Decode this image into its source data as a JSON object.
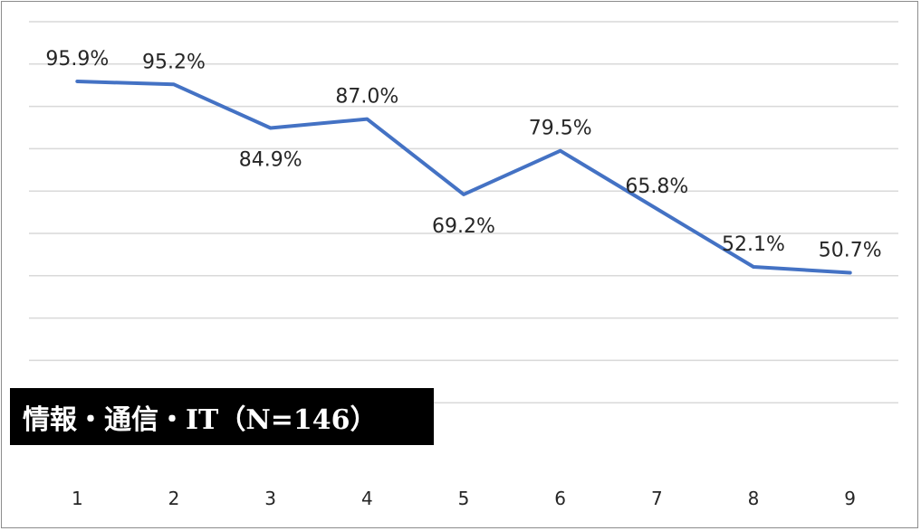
{
  "chart_data": {
    "type": "line",
    "title": "",
    "xlabel": "",
    "ylabel": "",
    "categories": [
      "1",
      "2",
      "3",
      "4",
      "5",
      "6",
      "7",
      "8",
      "9"
    ],
    "series": [
      {
        "values": [
          95.9,
          95.2,
          84.9,
          87.0,
          69.2,
          79.5,
          65.8,
          52.1,
          50.7
        ],
        "labels": [
          "95.9%",
          "95.2%",
          "84.9%",
          "87.0%",
          "69.2%",
          "79.5%",
          "65.8%",
          "52.1%",
          "50.7%"
        ],
        "color": "#4472c4"
      }
    ],
    "ylim": [
      10,
      110
    ],
    "grid": true,
    "legend": "none",
    "annotation": "情報・通信・IT（N=146）"
  }
}
